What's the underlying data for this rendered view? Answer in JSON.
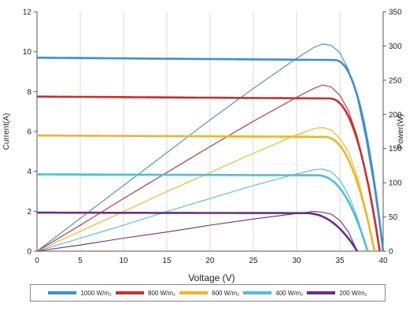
{
  "chart_data": {
    "type": "line",
    "xlabel": "Voltage (V)",
    "ylabel_left": "Current(A)",
    "ylabel_right": "Power(W)",
    "xlim": [
      0,
      40
    ],
    "ylim_left": [
      0,
      12
    ],
    "ylim_right": [
      0,
      350
    ],
    "x_ticks": [
      "0",
      "5",
      "10",
      "15",
      "20",
      "25",
      "30",
      "35",
      "40"
    ],
    "y_left_ticks": [
      "0",
      "2",
      "4",
      "6",
      "8",
      "10",
      "12"
    ],
    "y_right_ticks": [
      "0",
      "50",
      "100",
      "150",
      "200",
      "250",
      "300",
      "350"
    ],
    "grid": "vertical",
    "legend_placement": "bottom",
    "series": [
      {
        "name": "1000 W/m₂",
        "color": "#3b8fd6",
        "current": {
          "isc": 9.7,
          "voc": 40.0,
          "knee": 34.4
        },
        "power": [
          [
            0,
            0
          ],
          [
            5,
            48
          ],
          [
            10,
            96
          ],
          [
            15,
            144
          ],
          [
            20,
            192
          ],
          [
            25,
            238
          ],
          [
            30,
            282
          ],
          [
            32,
            298
          ],
          [
            33,
            303
          ],
          [
            34,
            301
          ],
          [
            35,
            290
          ],
          [
            36,
            265
          ],
          [
            37,
            225
          ],
          [
            38,
            165
          ],
          [
            39,
            90
          ],
          [
            40,
            0
          ]
        ]
      },
      {
        "name": "800 W/m₂",
        "color": "#d42a2a",
        "current": {
          "isc": 7.75,
          "voc": 39.6,
          "knee": 33.8
        },
        "power": [
          [
            0,
            0
          ],
          [
            5,
            38
          ],
          [
            10,
            77
          ],
          [
            15,
            115
          ],
          [
            20,
            153
          ],
          [
            25,
            190
          ],
          [
            30,
            225
          ],
          [
            32,
            238
          ],
          [
            33,
            243
          ],
          [
            34,
            240
          ],
          [
            35,
            228
          ],
          [
            36,
            205
          ],
          [
            37,
            168
          ],
          [
            38,
            115
          ],
          [
            39,
            50
          ],
          [
            39.6,
            0
          ]
        ]
      },
      {
        "name": "600 W/m₂",
        "color": "#f4b41a",
        "current": {
          "isc": 5.8,
          "voc": 39.0,
          "knee": 33.2
        },
        "power": [
          [
            0,
            0
          ],
          [
            5,
            29
          ],
          [
            10,
            58
          ],
          [
            15,
            87
          ],
          [
            20,
            115
          ],
          [
            25,
            143
          ],
          [
            30,
            170
          ],
          [
            32,
            179
          ],
          [
            33,
            181
          ],
          [
            34,
            177
          ],
          [
            35,
            165
          ],
          [
            36,
            145
          ],
          [
            37,
            110
          ],
          [
            38,
            60
          ],
          [
            39,
            0
          ]
        ]
      },
      {
        "name": "400 W/m₂",
        "color": "#49c0dc",
        "current": {
          "isc": 3.85,
          "voc": 38.2,
          "knee": 32.4
        },
        "power": [
          [
            0,
            0
          ],
          [
            5,
            19
          ],
          [
            10,
            38
          ],
          [
            15,
            58
          ],
          [
            20,
            77
          ],
          [
            25,
            96
          ],
          [
            30,
            113
          ],
          [
            32,
            119
          ],
          [
            33,
            120
          ],
          [
            34,
            116
          ],
          [
            35,
            104
          ],
          [
            36,
            82
          ],
          [
            37,
            50
          ],
          [
            38.2,
            0
          ]
        ]
      },
      {
        "name": "200 W/m₂",
        "color": "#6a2d8f",
        "current": {
          "isc": 1.93,
          "voc": 37.0,
          "knee": 31.0
        },
        "power": [
          [
            0,
            0
          ],
          [
            5,
            9
          ],
          [
            10,
            19
          ],
          [
            15,
            28
          ],
          [
            20,
            38
          ],
          [
            25,
            47
          ],
          [
            30,
            55
          ],
          [
            32,
            58
          ],
          [
            33,
            57
          ],
          [
            34,
            54
          ],
          [
            35,
            45
          ],
          [
            36,
            28
          ],
          [
            37,
            0
          ]
        ]
      }
    ]
  }
}
